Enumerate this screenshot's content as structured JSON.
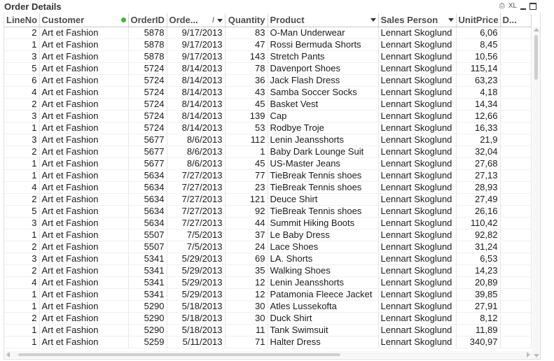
{
  "caption": {
    "title": "Order Details",
    "icons": [
      "print-icon",
      "xl-export-icon",
      "restore-icon",
      "minimize-icon"
    ],
    "xl_label": "XL"
  },
  "table": {
    "columns": [
      {
        "label": "LineNo"
      },
      {
        "label": "Customer"
      },
      {
        "label": "OrderID"
      },
      {
        "label": "Orde..."
      },
      {
        "label": "Quantity"
      },
      {
        "label": "Product"
      },
      {
        "label": "Sales Person"
      },
      {
        "label": "UnitPrice"
      },
      {
        "label": "D..."
      }
    ],
    "sort_label": "/",
    "rows": [
      [
        "2",
        "Art et Fashion",
        "5878",
        "9/17/2013",
        "83",
        "O-Man Underwear",
        "Lennart Skoglund",
        "6,06"
      ],
      [
        "1",
        "Art et Fashion",
        "5878",
        "9/17/2013",
        "47",
        "Rossi Bermuda Shorts",
        "Lennart Skoglund",
        "8,45"
      ],
      [
        "3",
        "Art et Fashion",
        "5878",
        "9/17/2013",
        "143",
        "Stretch Pants",
        "Lennart Skoglund",
        "10,56"
      ],
      [
        "5",
        "Art et Fashion",
        "5724",
        "8/14/2013",
        "78",
        "Davenport Shoes",
        "Lennart Skoglund",
        "115,14"
      ],
      [
        "6",
        "Art et Fashion",
        "5724",
        "8/14/2013",
        "36",
        "Jack Flash Dress",
        "Lennart Skoglund",
        "63,23"
      ],
      [
        "4",
        "Art et Fashion",
        "5724",
        "8/14/2013",
        "43",
        "Samba Soccer Socks",
        "Lennart Skoglund",
        "4,18"
      ],
      [
        "2",
        "Art et Fashion",
        "5724",
        "8/14/2013",
        "45",
        "Basket Vest",
        "Lennart Skoglund",
        "14,34"
      ],
      [
        "3",
        "Art et Fashion",
        "5724",
        "8/14/2013",
        "139",
        "Cap",
        "Lennart Skoglund",
        "12,66"
      ],
      [
        "1",
        "Art et Fashion",
        "5724",
        "8/14/2013",
        "53",
        "Rodbye Troje",
        "Lennart Skoglund",
        "16,33"
      ],
      [
        "3",
        "Art et Fashion",
        "5677",
        "8/6/2013",
        "112",
        "Lenin Jeansshorts",
        "Lennart Skoglund",
        "21,9"
      ],
      [
        "2",
        "Art et Fashion",
        "5677",
        "8/6/2013",
        "1",
        "Baby Dark Lounge Suit",
        "Lennart Skoglund",
        "32,04"
      ],
      [
        "1",
        "Art et Fashion",
        "5677",
        "8/6/2013",
        "45",
        "US-Master Jeans",
        "Lennart Skoglund",
        "27,68"
      ],
      [
        "1",
        "Art et Fashion",
        "5634",
        "7/27/2013",
        "77",
        "TieBreak Tennis shoes",
        "Lennart Skoglund",
        "27,13"
      ],
      [
        "4",
        "Art et Fashion",
        "5634",
        "7/27/2013",
        "23",
        "TieBreak Tennis shoes",
        "Lennart Skoglund",
        "28,93"
      ],
      [
        "2",
        "Art et Fashion",
        "5634",
        "7/27/2013",
        "121",
        "Deuce Shirt",
        "Lennart Skoglund",
        "27,49"
      ],
      [
        "5",
        "Art et Fashion",
        "5634",
        "7/27/2013",
        "92",
        "TieBreak Tennis shoes",
        "Lennart Skoglund",
        "26,16"
      ],
      [
        "3",
        "Art et Fashion",
        "5634",
        "7/27/2013",
        "44",
        "Summit Hiking Boots",
        "Lennart Skoglund",
        "110,42"
      ],
      [
        "1",
        "Art et Fashion",
        "5507",
        "7/5/2013",
        "37",
        "Le Baby Dress",
        "Lennart Skoglund",
        "92,82"
      ],
      [
        "2",
        "Art et Fashion",
        "5507",
        "7/5/2013",
        "24",
        "Lace Shoes",
        "Lennart Skoglund",
        "31,24"
      ],
      [
        "3",
        "Art et Fashion",
        "5341",
        "5/29/2013",
        "69",
        "LA. Shorts",
        "Lennart Skoglund",
        "6,53"
      ],
      [
        "2",
        "Art et Fashion",
        "5341",
        "5/29/2013",
        "35",
        "Walking Shoes",
        "Lennart Skoglund",
        "14,23"
      ],
      [
        "4",
        "Art et Fashion",
        "5341",
        "5/29/2013",
        "12",
        "Lenin Jeansshorts",
        "Lennart Skoglund",
        "20,89"
      ],
      [
        "1",
        "Art et Fashion",
        "5341",
        "5/29/2013",
        "12",
        "Patamonia Fleece Jacket",
        "Lennart Skoglund",
        "39,85"
      ],
      [
        "1",
        "Art et Fashion",
        "5290",
        "5/18/2013",
        "30",
        "Atles Lussekofta",
        "Lennart Skoglund",
        "27,91"
      ],
      [
        "2",
        "Art et Fashion",
        "5290",
        "5/18/2013",
        "30",
        "Duck Shirt",
        "Lennart Skoglund",
        "8,12"
      ],
      [
        "1",
        "Art et Fashion",
        "5290",
        "5/18/2013",
        "11",
        "Tank Swimsuit",
        "Lennart Skoglund",
        "11,89"
      ],
      [
        "1",
        "Art et Fashion",
        "5259",
        "5/11/2013",
        "71",
        "Halter Dress",
        "Lennart Skoglund",
        "340,97"
      ]
    ]
  }
}
